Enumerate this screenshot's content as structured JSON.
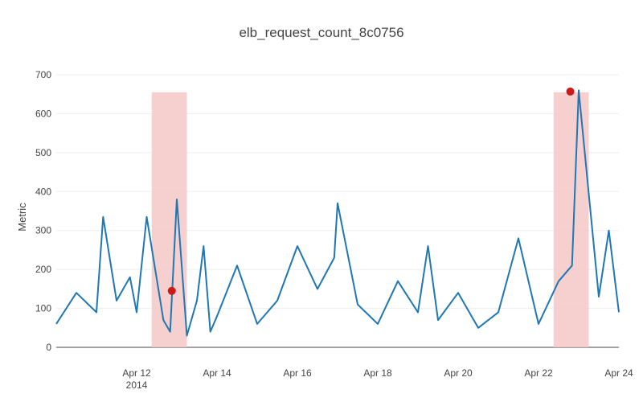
{
  "chart_data": {
    "type": "line",
    "title": "elb_request_count_8c0756",
    "ylabel": "Metric",
    "xlabel": "",
    "ylim": [
      0,
      700
    ],
    "xlim": [
      "2014-04-10",
      "2014-04-24"
    ],
    "y_ticks": [
      "0",
      "100",
      "200",
      "300",
      "400",
      "500",
      "600",
      "700"
    ],
    "x_ticks": [
      {
        "date": "2014-04-12",
        "label": "Apr 12",
        "sublabel": "2014"
      },
      {
        "date": "2014-04-14",
        "label": "Apr 14"
      },
      {
        "date": "2014-04-16",
        "label": "Apr 16"
      },
      {
        "date": "2014-04-18",
        "label": "Apr 18"
      },
      {
        "date": "2014-04-20",
        "label": "Apr 20"
      },
      {
        "date": "2014-04-22",
        "label": "Apr 22"
      },
      {
        "date": "2014-04-24",
        "label": "Apr 24"
      }
    ],
    "grid": true,
    "series": [
      {
        "color": "#1f77b4",
        "x": [
          "2014-04-10 00:00",
          "2014-04-10 12:00",
          "2014-04-11 00:00",
          "2014-04-11 04:00",
          "2014-04-11 12:00",
          "2014-04-11 20:00",
          "2014-04-12 00:00",
          "2014-04-12 06:00",
          "2014-04-12 16:00",
          "2014-04-12 20:00",
          "2014-04-13 00:00",
          "2014-04-13 06:00",
          "2014-04-13 12:00",
          "2014-04-13 16:00",
          "2014-04-13 20:00",
          "2014-04-14 00:00",
          "2014-04-14 12:00",
          "2014-04-15 00:00",
          "2014-04-15 12:00",
          "2014-04-16 00:00",
          "2014-04-16 12:00",
          "2014-04-16 22:00",
          "2014-04-17 00:00",
          "2014-04-17 12:00",
          "2014-04-18 00:00",
          "2014-04-18 12:00",
          "2014-04-19 00:00",
          "2014-04-19 06:00",
          "2014-04-19 12:00",
          "2014-04-20 00:00",
          "2014-04-20 12:00",
          "2014-04-21 00:00",
          "2014-04-21 12:00",
          "2014-04-22 00:00",
          "2014-04-22 12:00",
          "2014-04-22 20:00",
          "2014-04-23 00:00",
          "2014-04-23 12:00",
          "2014-04-23 18:00",
          "2014-04-24 00:00"
        ],
        "y": [
          60,
          140,
          90,
          335,
          120,
          180,
          90,
          335,
          70,
          40,
          380,
          30,
          120,
          260,
          40,
          80,
          210,
          60,
          120,
          260,
          150,
          230,
          370,
          110,
          60,
          170,
          90,
          260,
          70,
          140,
          50,
          90,
          280,
          60,
          170,
          210,
          660,
          130,
          300,
          90
        ]
      }
    ],
    "anomaly_regions": [
      {
        "start": "2014-04-12 09:00",
        "end": "2014-04-13 06:00"
      },
      {
        "start": "2014-04-22 09:00",
        "end": "2014-04-23 06:00"
      }
    ],
    "anomaly_points": [
      {
        "x": "2014-04-12 21:00",
        "y": 145
      },
      {
        "x": "2014-04-22 19:00",
        "y": 657
      }
    ],
    "anomaly_color": "#cc1a1a",
    "region_color": "#f4c7c7"
  }
}
